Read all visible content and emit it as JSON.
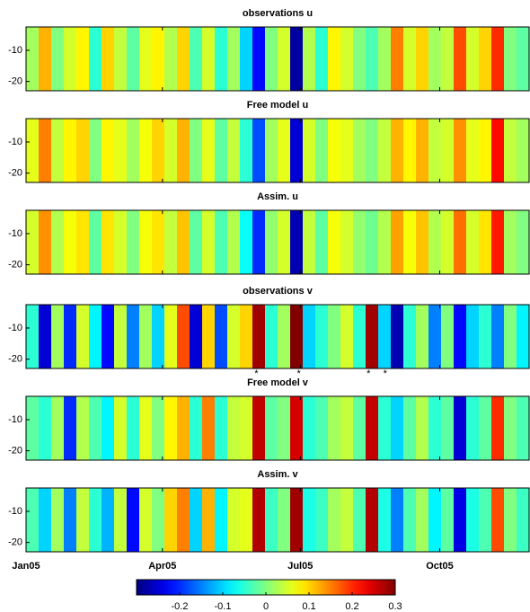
{
  "chart_data": [
    {
      "type": "heatmap",
      "title": "observations u",
      "ylim": [
        -23,
        -2.5
      ],
      "yticks": [
        -10,
        -20
      ],
      "xlim": [
        0,
        332
      ],
      "values": [
        0.02,
        0.12,
        0.0,
        0.05,
        0.08,
        -0.05,
        0.1,
        0.04,
        -0.02,
        0.06,
        0.08,
        0.03,
        0.1,
        -0.03,
        0.05,
        -0.05,
        0.02,
        -0.1,
        -0.22,
        0.0,
        0.05,
        -0.28,
        0.03,
        -0.05,
        0.08,
        0.05,
        0.0,
        -0.03,
        0.02,
        0.15,
        0.05,
        0.1,
        0.02,
        0.04,
        0.18,
        0.05,
        0.1,
        0.2,
        0.0,
        -0.02
      ]
    },
    {
      "type": "heatmap",
      "title": "Free model u",
      "ylim": [
        -23,
        -2.5
      ],
      "yticks": [
        -10,
        -20
      ],
      "xlim": [
        0,
        332
      ],
      "values": [
        0.06,
        0.15,
        0.04,
        0.08,
        0.1,
        0.0,
        0.08,
        0.06,
        0.02,
        0.07,
        0.1,
        0.05,
        0.12,
        0.0,
        0.06,
        -0.02,
        0.04,
        -0.05,
        -0.18,
        0.02,
        0.06,
        -0.25,
        0.05,
        0.0,
        0.07,
        0.06,
        0.02,
        0.0,
        0.04,
        0.12,
        0.08,
        0.12,
        0.04,
        0.05,
        0.14,
        0.06,
        0.08,
        0.22,
        0.04,
        0.02
      ]
    },
    {
      "type": "heatmap",
      "title": "Assim. u",
      "ylim": [
        -23,
        -2.5
      ],
      "yticks": [
        -10,
        -20
      ],
      "xlim": [
        0,
        332
      ],
      "values": [
        0.05,
        0.14,
        0.03,
        0.07,
        0.09,
        -0.02,
        0.09,
        0.05,
        0.0,
        0.07,
        0.09,
        0.04,
        0.11,
        -0.02,
        0.05,
        -0.03,
        0.03,
        -0.07,
        -0.2,
        0.01,
        0.05,
        -0.27,
        0.04,
        -0.02,
        0.07,
        0.05,
        0.01,
        -0.01,
        0.03,
        0.13,
        0.07,
        0.11,
        0.03,
        0.05,
        0.16,
        0.05,
        0.09,
        0.21,
        0.02,
        0.0
      ]
    },
    {
      "type": "heatmap",
      "title": "observations v",
      "ylim": [
        -23,
        -2.5
      ],
      "yticks": [
        -10,
        -20
      ],
      "xlim": [
        0,
        332
      ],
      "values": [
        -0.05,
        -0.25,
        0.02,
        -0.2,
        0.05,
        -0.08,
        -0.22,
        0.04,
        -0.15,
        0.02,
        -0.1,
        0.06,
        0.18,
        -0.25,
        0.1,
        -0.18,
        0.05,
        0.1,
        0.28,
        -0.05,
        0.02,
        0.3,
        -0.1,
        -0.05,
        0.0,
        0.05,
        -0.05,
        0.28,
        -0.1,
        -0.27,
        -0.05,
        0.02,
        -0.15,
        0.0,
        -0.22,
        -0.1,
        -0.05,
        -0.15,
        0.0,
        -0.08
      ],
      "annotations": [
        {
          "x": 152,
          "text": "*"
        },
        {
          "x": 180,
          "text": "*"
        },
        {
          "x": 226,
          "text": "*"
        },
        {
          "x": 237,
          "text": "*"
        }
      ]
    },
    {
      "type": "heatmap",
      "title": "Free model v",
      "ylim": [
        -23,
        -2.5
      ],
      "yticks": [
        -10,
        -20
      ],
      "xlim": [
        0,
        332
      ],
      "values": [
        -0.02,
        -0.05,
        0.02,
        -0.2,
        0.03,
        -0.03,
        -0.08,
        0.05,
        -0.05,
        0.06,
        0.0,
        0.08,
        0.12,
        -0.05,
        0.15,
        -0.05,
        0.04,
        0.05,
        0.26,
        -0.02,
        0.0,
        0.25,
        -0.05,
        -0.03,
        0.02,
        0.04,
        -0.02,
        0.26,
        -0.05,
        -0.1,
        -0.02,
        0.03,
        -0.05,
        -0.02,
        -0.25,
        -0.05,
        -0.02,
        0.2,
        0.0,
        -0.03
      ]
    },
    {
      "type": "heatmap",
      "title": "Assim. v",
      "ylim": [
        -23,
        -2.5
      ],
      "yticks": [
        -10,
        -20
      ],
      "xlim": [
        0,
        332
      ],
      "xticks": [
        {
          "value": 0,
          "label": "Jan05"
        },
        {
          "value": 90,
          "label": "Apr05"
        },
        {
          "value": 181,
          "label": "Jul05"
        },
        {
          "value": 273,
          "label": "Oct05"
        }
      ],
      "values": [
        -0.03,
        -0.1,
        0.02,
        -0.15,
        0.04,
        -0.05,
        -0.12,
        0.04,
        -0.22,
        0.05,
        0.0,
        0.1,
        0.15,
        -0.1,
        0.12,
        -0.08,
        0.05,
        0.06,
        0.27,
        -0.04,
        0.0,
        0.28,
        -0.06,
        -0.04,
        0.02,
        0.04,
        -0.03,
        0.27,
        -0.06,
        -0.15,
        -0.03,
        0.02,
        -0.08,
        -0.02,
        -0.24,
        -0.06,
        -0.03,
        0.18,
        0.0,
        -0.04
      ]
    },
    {
      "type": "colorbar",
      "xlim": [
        -0.3,
        0.3
      ],
      "xticks": [
        -0.2,
        -0.1,
        0,
        0.1,
        0.2,
        0.3
      ]
    }
  ]
}
